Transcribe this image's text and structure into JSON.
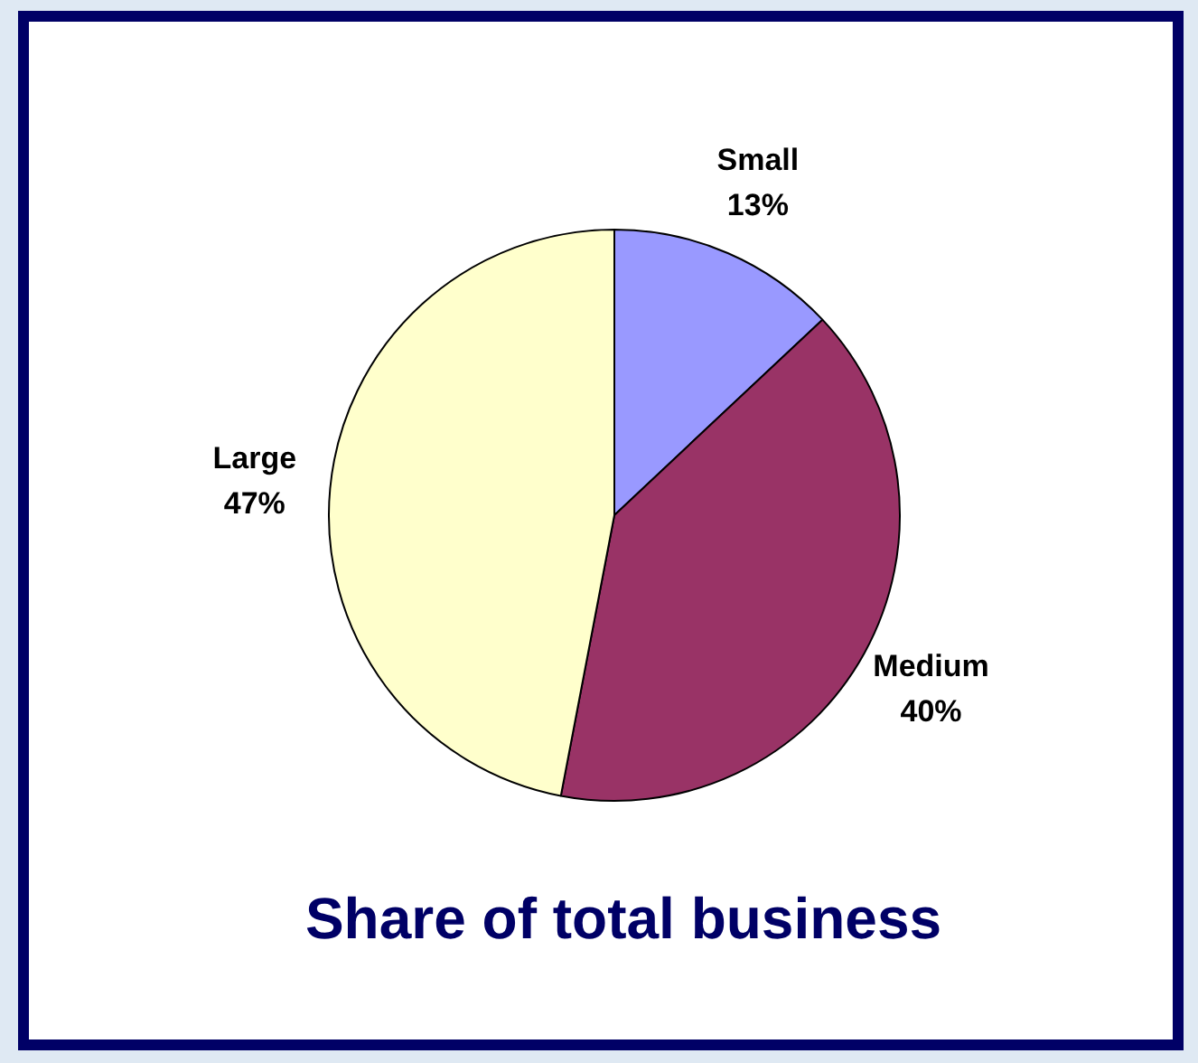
{
  "chart_data": {
    "type": "pie",
    "title": "Share of total business",
    "categories": [
      "Small",
      "Medium",
      "Large"
    ],
    "values": [
      13,
      40,
      47
    ],
    "colors": [
      "#9999ff",
      "#993366",
      "#ffffcc"
    ],
    "value_labels": [
      "13%",
      "40%",
      "47%"
    ],
    "legend": false
  }
}
